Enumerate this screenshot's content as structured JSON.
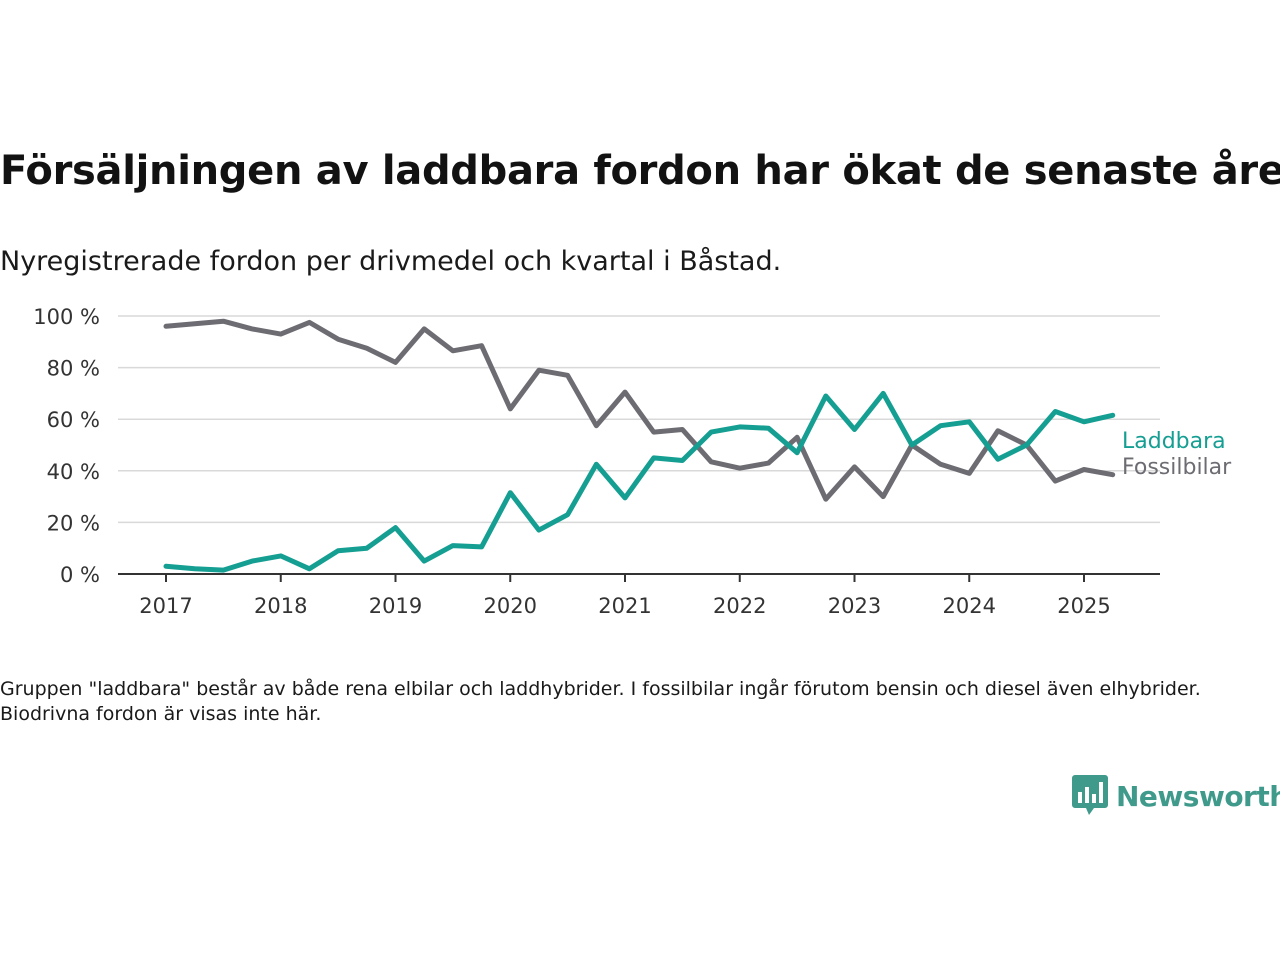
{
  "title": "Försäljningen av laddbara fordon har ökat de senaste åren",
  "subtitle": "Nyregistrerade fordon per drivmedel och kvartal i Båstad.",
  "note": "Gruppen \"laddbara\" består av både rena elbilar och laddhybrider. I fossilbilar ingår förutom bensin och diesel även elhybrider. Biodrivna fordon är visas inte här.",
  "brand": {
    "name": "Newsworthy",
    "color": "#3f9a8c",
    "icon": "bar-chart-speech-bubble-icon"
  },
  "chart_data": {
    "type": "line",
    "x_tick_labels": [
      "2017",
      "2018",
      "2019",
      "2020",
      "2021",
      "2022",
      "2023",
      "2024",
      "2025"
    ],
    "y_tick_labels": [
      "0 %",
      "20 %",
      "40 %",
      "60 %",
      "80 %",
      "100 %"
    ],
    "y_ticks": [
      0,
      20,
      40,
      60,
      80,
      100
    ],
    "ylim": [
      0,
      100
    ],
    "xlim": [
      2016.6,
      2026.3
    ],
    "grid": true,
    "legend": "right, end of lines",
    "x": [
      2017.0,
      2017.25,
      2017.5,
      2017.75,
      2018.0,
      2018.25,
      2018.5,
      2018.75,
      2019.0,
      2019.25,
      2019.5,
      2019.75,
      2020.0,
      2020.25,
      2020.5,
      2020.75,
      2021.0,
      2021.25,
      2021.5,
      2021.75,
      2022.0,
      2022.25,
      2022.5,
      2022.75,
      2023.0,
      2023.25,
      2023.5,
      2023.75,
      2024.0,
      2024.25,
      2024.5,
      2024.75,
      2025.0,
      2025.25
    ],
    "series": [
      {
        "name": "Laddbara",
        "color": "#159e92",
        "values": [
          3,
          2,
          1.5,
          5,
          7,
          2,
          9,
          10,
          18,
          5,
          11,
          10.5,
          31.5,
          17,
          23,
          42.5,
          29.5,
          45,
          44,
          55,
          57,
          56.5,
          47,
          69,
          56,
          70,
          50,
          57.5,
          59,
          44.5,
          50,
          63,
          59,
          61.5
        ]
      },
      {
        "name": "Fossilbilar",
        "color": "#6d6c72",
        "values": [
          96,
          97,
          98,
          95,
          93,
          97.5,
          91,
          87.5,
          82,
          95,
          86.5,
          88.5,
          64,
          79,
          77,
          57.5,
          70.5,
          55,
          56,
          43.5,
          41,
          43,
          53,
          29,
          41.5,
          30,
          50,
          42.5,
          39,
          55.5,
          50,
          36,
          40.5,
          38.5
        ]
      }
    ]
  }
}
